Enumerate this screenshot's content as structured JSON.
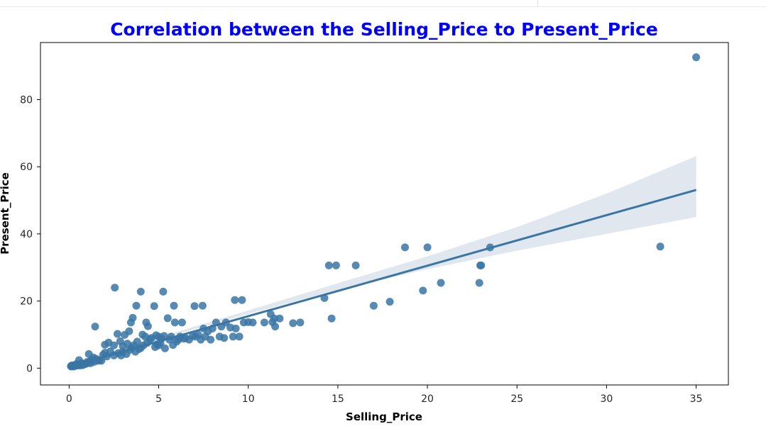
{
  "colors": {
    "title": "#0000ff",
    "points": "#3a75a4",
    "line": "#3a75a4",
    "band": "#d5dfea",
    "frame": "#000000",
    "tick_text": "#262626"
  },
  "chart_data": {
    "type": "scatter",
    "title": "Correlation between the Selling_Price to Present_Price",
    "xlabel": "Selling_Price",
    "ylabel": "Present_Price",
    "xlim": [
      -1.6,
      36.8
    ],
    "ylim": [
      -5,
      97
    ],
    "xticks": [
      0,
      5,
      10,
      15,
      20,
      25,
      30,
      35
    ],
    "yticks": [
      0,
      20,
      40,
      60,
      80
    ],
    "grid": false,
    "regression": {
      "x_range": [
        0.1,
        35
      ],
      "line": [
        [
          0.1,
          0.6
        ],
        [
          35,
          53.1
        ]
      ],
      "ci_band": {
        "x": [
          0.1,
          5,
          10,
          15,
          20,
          25,
          30,
          35
        ],
        "lower": [
          0.0,
          8.5,
          16.2,
          23.3,
          29.5,
          35.0,
          40.0,
          45.0
        ],
        "upper": [
          1.2,
          9.2,
          17.2,
          25.3,
          33.3,
          42.0,
          52.0,
          63.2
        ]
      }
    },
    "series": [
      {
        "points": [
          [
            0.1,
            0.6
          ],
          [
            0.12,
            0.5
          ],
          [
            0.15,
            0.8
          ],
          [
            0.2,
            0.75
          ],
          [
            0.25,
            0.5
          ],
          [
            0.3,
            0.9
          ],
          [
            0.35,
            0.7
          ],
          [
            0.4,
            1.2
          ],
          [
            0.45,
            0.8
          ],
          [
            0.5,
            1.0
          ],
          [
            0.55,
            2.4
          ],
          [
            0.6,
            0.8
          ],
          [
            0.65,
            1.1
          ],
          [
            0.7,
            1.5
          ],
          [
            0.75,
            0.9
          ],
          [
            0.8,
            1.3
          ],
          [
            0.9,
            1.2
          ],
          [
            1.0,
            1.8
          ],
          [
            1.05,
            1.5
          ],
          [
            1.1,
            4.2
          ],
          [
            1.15,
            2.0
          ],
          [
            1.2,
            1.5
          ],
          [
            1.25,
            2.3
          ],
          [
            1.3,
            2.5
          ],
          [
            1.35,
            3.2
          ],
          [
            1.4,
            1.9
          ],
          [
            1.45,
            12.4
          ],
          [
            1.5,
            2.8
          ],
          [
            1.6,
            2.2
          ],
          [
            1.7,
            2.4
          ],
          [
            1.8,
            2.2
          ],
          [
            1.9,
            4.0
          ],
          [
            2.0,
            7.0
          ],
          [
            2.0,
            4.6
          ],
          [
            2.1,
            3.5
          ],
          [
            2.2,
            7.6
          ],
          [
            2.3,
            5.0
          ],
          [
            2.5,
            3.8
          ],
          [
            2.5,
            6.8
          ],
          [
            2.55,
            24.0
          ],
          [
            2.7,
            10.2
          ],
          [
            2.75,
            4.5
          ],
          [
            2.85,
            8.0
          ],
          [
            2.9,
            3.8
          ],
          [
            3.0,
            6.5
          ],
          [
            3.0,
            4.9
          ],
          [
            3.1,
            9.9
          ],
          [
            3.2,
            4.2
          ],
          [
            3.25,
            7.3
          ],
          [
            3.35,
            11.0
          ],
          [
            3.4,
            5.5
          ],
          [
            3.45,
            13.6
          ],
          [
            3.5,
            6.1
          ],
          [
            3.55,
            15.0
          ],
          [
            3.6,
            6.8
          ],
          [
            3.7,
            4.9
          ],
          [
            3.75,
            18.6
          ],
          [
            3.8,
            7.9
          ],
          [
            3.9,
            5.7
          ],
          [
            4.0,
            22.8
          ],
          [
            4.0,
            6.0
          ],
          [
            4.1,
            10.0
          ],
          [
            4.15,
            6.8
          ],
          [
            4.25,
            9.4
          ],
          [
            4.3,
            13.6
          ],
          [
            4.35,
            7.5
          ],
          [
            4.4,
            12.5
          ],
          [
            4.5,
            8.6
          ],
          [
            4.6,
            9.0
          ],
          [
            4.75,
            18.5
          ],
          [
            4.8,
            6.3
          ],
          [
            4.85,
            9.8
          ],
          [
            4.9,
            7.1
          ],
          [
            5.0,
            9.4
          ],
          [
            5.0,
            6.8
          ],
          [
            5.1,
            7.5
          ],
          [
            5.15,
            8.8
          ],
          [
            5.25,
            22.8
          ],
          [
            5.3,
            9.6
          ],
          [
            5.35,
            5.9
          ],
          [
            5.5,
            14.9
          ],
          [
            5.6,
            8.5
          ],
          [
            5.7,
            9.4
          ],
          [
            5.8,
            6.9
          ],
          [
            5.85,
            18.6
          ],
          [
            5.9,
            13.6
          ],
          [
            6.0,
            7.9
          ],
          [
            6.1,
            8.5
          ],
          [
            6.2,
            9.4
          ],
          [
            6.3,
            13.6
          ],
          [
            6.4,
            8.8
          ],
          [
            6.5,
            9.0
          ],
          [
            6.7,
            8.5
          ],
          [
            6.9,
            9.6
          ],
          [
            7.0,
            18.5
          ],
          [
            7.05,
            9.4
          ],
          [
            7.2,
            10.0
          ],
          [
            7.35,
            8.5
          ],
          [
            7.45,
            18.6
          ],
          [
            7.5,
            11.8
          ],
          [
            7.6,
            9.4
          ],
          [
            7.75,
            11.0
          ],
          [
            7.9,
            8.5
          ],
          [
            8.0,
            11.8
          ],
          [
            8.2,
            13.6
          ],
          [
            8.4,
            9.4
          ],
          [
            8.5,
            12.4
          ],
          [
            8.65,
            9.0
          ],
          [
            8.75,
            13.6
          ],
          [
            9.0,
            12.1
          ],
          [
            9.15,
            9.4
          ],
          [
            9.25,
            20.3
          ],
          [
            9.3,
            11.8
          ],
          [
            9.5,
            9.4
          ],
          [
            9.65,
            20.3
          ],
          [
            9.75,
            13.6
          ],
          [
            10.0,
            13.7
          ],
          [
            10.25,
            13.6
          ],
          [
            10.9,
            13.6
          ],
          [
            11.25,
            16.1
          ],
          [
            11.35,
            13.7
          ],
          [
            11.45,
            14.8
          ],
          [
            11.5,
            12.4
          ],
          [
            11.75,
            14.8
          ],
          [
            12.5,
            13.4
          ],
          [
            12.9,
            13.6
          ],
          [
            14.25,
            20.9
          ],
          [
            14.5,
            30.6
          ],
          [
            14.65,
            14.8
          ],
          [
            14.9,
            30.6
          ],
          [
            16.0,
            30.6
          ],
          [
            17.0,
            18.6
          ],
          [
            17.9,
            19.8
          ],
          [
            18.75,
            36.0
          ],
          [
            19.75,
            23.1
          ],
          [
            20.0,
            36.0
          ],
          [
            20.75,
            25.4
          ],
          [
            22.9,
            25.4
          ],
          [
            22.95,
            30.6
          ],
          [
            23.0,
            30.6
          ],
          [
            23.5,
            35.96
          ],
          [
            33.0,
            36.23
          ],
          [
            35.0,
            92.6
          ]
        ]
      }
    ]
  }
}
